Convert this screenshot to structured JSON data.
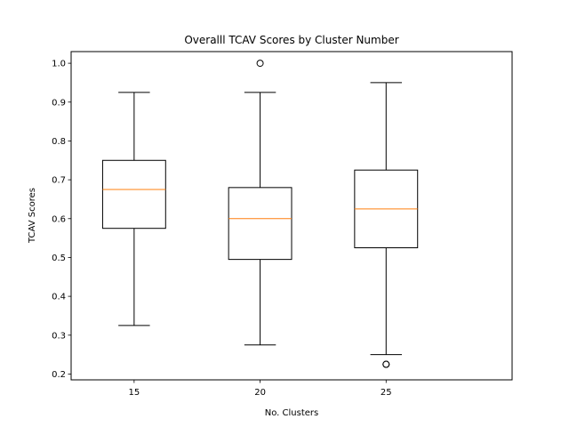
{
  "chart_data": {
    "type": "box",
    "title": "Overalll TCAV Scores by Cluster Number",
    "xlabel": "No. Clusters",
    "ylabel": "TCAV Scores",
    "categories": [
      "15",
      "20",
      "25"
    ],
    "ylim": [
      0.185,
      1.03
    ],
    "yticks": [
      0.2,
      0.3,
      0.4,
      0.5,
      0.6,
      0.7,
      0.8,
      0.9,
      1.0
    ],
    "ytick_labels": [
      "0.2",
      "0.3",
      "0.4",
      "0.5",
      "0.6",
      "0.7",
      "0.8",
      "0.9",
      "1.0"
    ],
    "boxes": [
      {
        "label": "15",
        "whisker_low": 0.325,
        "q1": 0.575,
        "median": 0.675,
        "q3": 0.75,
        "whisker_high": 0.925,
        "outliers": []
      },
      {
        "label": "20",
        "whisker_low": 0.275,
        "q1": 0.495,
        "median": 0.6,
        "q3": 0.68,
        "whisker_high": 0.925,
        "outliers": [
          1.0
        ]
      },
      {
        "label": "25",
        "whisker_low": 0.25,
        "q1": 0.525,
        "median": 0.625,
        "q3": 0.725,
        "whisker_high": 0.95,
        "outliers": [
          0.225,
          0.225
        ]
      }
    ],
    "grid": false,
    "legend": "none",
    "colors": {
      "box": "#000000",
      "median": "#ff7f0e",
      "outlier": "#000000"
    }
  }
}
